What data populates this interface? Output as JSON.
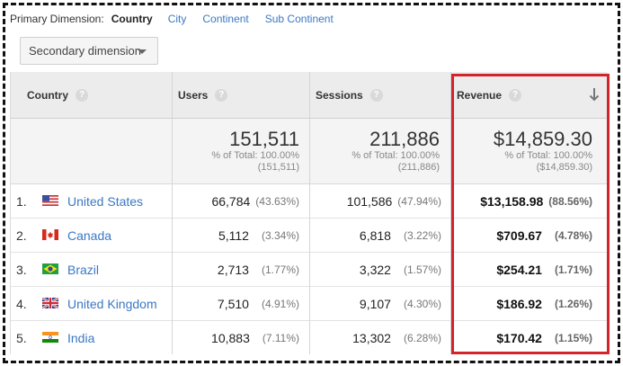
{
  "dimension_bar": {
    "label": "Primary Dimension:",
    "current": "Country",
    "options": [
      "City",
      "Continent",
      "Sub Continent"
    ]
  },
  "secondary_dimension": {
    "label": "Secondary dimension"
  },
  "headers": {
    "country": "Country",
    "users": "Users",
    "sessions": "Sessions",
    "revenue": "Revenue",
    "help": "?"
  },
  "totals": {
    "users": {
      "value": "151,511",
      "pct_label": "% of Total: 100.00%",
      "total": "(151,511)"
    },
    "sessions": {
      "value": "211,886",
      "pct_label": "% of Total: 100.00%",
      "total": "(211,886)"
    },
    "revenue": {
      "value": "$14,859.30",
      "pct_label": "% of Total: 100.00%",
      "total": "($14,859.30)"
    }
  },
  "rows": [
    {
      "index": "1.",
      "country": "United States",
      "flag": "us",
      "users": "66,784",
      "users_pct": "(43.63%)",
      "sessions": "101,586",
      "sessions_pct": "(47.94%)",
      "revenue": "$13,158.98",
      "revenue_pct": "(88.56%)"
    },
    {
      "index": "2.",
      "country": "Canada",
      "flag": "ca",
      "users": "5,112",
      "users_pct": "(3.34%)",
      "sessions": "6,818",
      "sessions_pct": "(3.22%)",
      "revenue": "$709.67",
      "revenue_pct": "(4.78%)"
    },
    {
      "index": "3.",
      "country": "Brazil",
      "flag": "br",
      "users": "2,713",
      "users_pct": "(1.77%)",
      "sessions": "3,322",
      "sessions_pct": "(1.57%)",
      "revenue": "$254.21",
      "revenue_pct": "(1.71%)"
    },
    {
      "index": "4.",
      "country": "United Kingdom",
      "flag": "gb",
      "users": "7,510",
      "users_pct": "(4.91%)",
      "sessions": "9,107",
      "sessions_pct": "(4.30%)",
      "revenue": "$186.92",
      "revenue_pct": "(1.26%)"
    },
    {
      "index": "5.",
      "country": "India",
      "flag": "in",
      "users": "10,883",
      "users_pct": "(7.11%)",
      "sessions": "13,302",
      "sessions_pct": "(6.28%)",
      "revenue": "$170.42",
      "revenue_pct": "(1.15%)"
    }
  ],
  "colors": {
    "link": "#3b78c4",
    "highlight": "#d4232a"
  }
}
